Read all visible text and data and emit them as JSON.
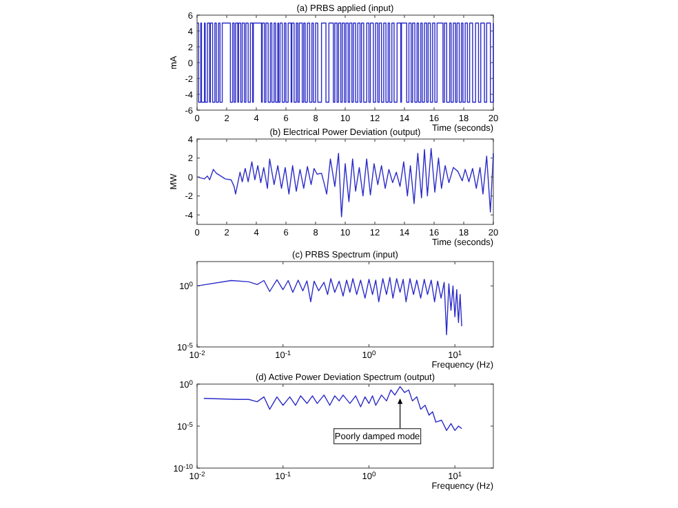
{
  "chart_data": [
    {
      "type": "step",
      "title": "(a) PRBS applied (input)",
      "xlabel": "Time (seconds)",
      "ylabel": "mA",
      "xlim": [
        0,
        20
      ],
      "ylim": [
        -6,
        6
      ],
      "xticks": [
        0,
        2,
        4,
        6,
        8,
        10,
        12,
        14,
        16,
        18,
        20
      ],
      "yticks": [
        -6,
        -4,
        -2,
        0,
        2,
        4,
        6
      ],
      "x": [
        0,
        0.1,
        0.25,
        0.3,
        0.5,
        0.55,
        0.7,
        0.85,
        0.9,
        1.05,
        1.2,
        1.3,
        1.45,
        1.55,
        1.7,
        2.25,
        2.4,
        2.5,
        2.6,
        2.75,
        2.8,
        2.95,
        3.05,
        3.2,
        3.3,
        3.45,
        3.6,
        3.75,
        3.8,
        4.35,
        4.4,
        4.55,
        4.65,
        4.8,
        4.95,
        5.05,
        5.2,
        5.3,
        5.45,
        5.5,
        5.6,
        5.75,
        5.9,
        6.0,
        6.15,
        6.35,
        6.4,
        6.55,
        6.7,
        6.8,
        6.9,
        7.1,
        7.2,
        7.3,
        7.45,
        7.6,
        7.75,
        7.85,
        8.0,
        8.15,
        8.4,
        8.7,
        8.9,
        9.2,
        9.3,
        9.45,
        9.55,
        9.7,
        9.8,
        9.95,
        10.05,
        10.2,
        10.3,
        10.45,
        10.55,
        10.7,
        10.85,
        11.0,
        11.1,
        11.25,
        11.45,
        11.6,
        11.7,
        11.9,
        12.05,
        12.2,
        12.3,
        12.45,
        12.6,
        12.75,
        12.9,
        13.0,
        13.15,
        13.3,
        13.5,
        13.75,
        13.8,
        14.15,
        14.3,
        14.45,
        14.55,
        14.7,
        14.85,
        14.95,
        15.1,
        15.2,
        15.35,
        15.5,
        15.6,
        15.75,
        15.9,
        16.05,
        16.2,
        16.6,
        16.7,
        16.85,
        17.05,
        17.15,
        17.3,
        17.45,
        17.55,
        17.7,
        17.85,
        17.95,
        18.1,
        18.25,
        18.4,
        18.6,
        18.8,
        19.0,
        19.15,
        19.4,
        19.55,
        19.8,
        20
      ],
      "series": [
        {
          "color": "#2a2ac8",
          "values": [
            5,
            -5,
            5,
            -5,
            5,
            -5,
            5,
            -5,
            5,
            -5,
            5,
            -5,
            5,
            -5,
            5,
            -5,
            5,
            -5,
            5,
            -5,
            5,
            -5,
            5,
            -5,
            5,
            -5,
            5,
            -5,
            5,
            -5,
            5,
            -5,
            5,
            -5,
            5,
            -5,
            5,
            -5,
            5,
            -5,
            5,
            -5,
            5,
            -5,
            5,
            -5,
            5,
            -5,
            5,
            -5,
            5,
            -5,
            5,
            -5,
            5,
            -5,
            5,
            -5,
            5,
            -5,
            5,
            -5,
            5,
            -5,
            5,
            -5,
            5,
            -5,
            5,
            -5,
            5,
            -5,
            5,
            -5,
            5,
            -5,
            5,
            -5,
            5,
            -5,
            5,
            -5,
            5,
            -5,
            5,
            -5,
            5,
            -5,
            5,
            -5,
            5,
            -5,
            5,
            -5,
            5,
            -5,
            5,
            -5,
            5,
            -5,
            5,
            -5,
            5,
            -5,
            5,
            -5,
            5,
            -5,
            5,
            -5,
            5,
            -5,
            5,
            -5,
            5,
            -5,
            5,
            -5,
            5,
            -5,
            5,
            -5,
            5,
            -5,
            5,
            -5,
            5,
            -5,
            5,
            -5,
            5,
            -5,
            5,
            -5,
            5
          ]
        }
      ]
    },
    {
      "type": "line",
      "title": "(b) Electrical Power Deviation (output)",
      "xlabel": "Time (seconds)",
      "ylabel": "MW",
      "xlim": [
        0,
        20
      ],
      "ylim": [
        -5,
        4
      ],
      "xticks": [
        0,
        2,
        4,
        6,
        8,
        10,
        12,
        14,
        16,
        18,
        20
      ],
      "yticks": [
        -4,
        -2,
        0,
        2,
        4
      ],
      "x": [
        0,
        0.5,
        0.7,
        0.85,
        1.1,
        1.3,
        1.5,
        1.9,
        2.3,
        2.5,
        2.6,
        2.9,
        3.05,
        3.25,
        3.45,
        3.7,
        3.9,
        4.1,
        4.3,
        4.5,
        4.75,
        4.9,
        5.2,
        5.45,
        5.7,
        5.95,
        6.2,
        6.45,
        6.7,
        6.95,
        7.2,
        7.45,
        7.7,
        7.9,
        8.1,
        8.4,
        8.6,
        8.75,
        9.0,
        9.3,
        9.55,
        9.75,
        10.0,
        10.25,
        10.5,
        10.7,
        10.95,
        11.2,
        11.45,
        11.7,
        11.95,
        12.2,
        12.45,
        12.7,
        12.95,
        13.2,
        13.45,
        13.7,
        13.95,
        14.2,
        14.4,
        14.65,
        14.9,
        15.15,
        15.35,
        15.55,
        15.8,
        16.05,
        16.3,
        16.5,
        16.75,
        17.0,
        17.3,
        17.6,
        17.9,
        18.1,
        18.35,
        18.6,
        18.85,
        19.1,
        19.3,
        19.55,
        19.8,
        20
      ],
      "series": [
        {
          "color": "#2a2ac8",
          "values": [
            0,
            -0.2,
            0.1,
            -0.3,
            0.8,
            0.4,
            0.2,
            -0.2,
            -0.3,
            -1.0,
            -1.8,
            0.5,
            -0.5,
            0.9,
            -0.5,
            1.6,
            -0.3,
            1.2,
            -0.6,
            1.0,
            -1.2,
            1.9,
            -0.8,
            1.2,
            -1.2,
            1.0,
            -1.8,
            1.2,
            -1.5,
            0.8,
            -1.2,
            1.1,
            -0.8,
            0.9,
            0.3,
            0.4,
            -0.8,
            -1.8,
            1.9,
            -1.0,
            2.5,
            -4.2,
            1.4,
            -2.6,
            1.9,
            -1.5,
            1.0,
            -2.0,
            1.9,
            -1.9,
            1.4,
            -0.8,
            1.2,
            -1.2,
            0.8,
            -0.6,
            0.5,
            -1.0,
            1.6,
            -2.0,
            1.2,
            -2.8,
            2.5,
            -2.2,
            2.9,
            -2.0,
            3.0,
            -1.6,
            2.0,
            -1.2,
            1.2,
            -0.6,
            1.0,
            0.6,
            -0.4,
            0.8,
            -0.5,
            0.9,
            -1.2,
            1.0,
            -1.8,
            2.2,
            -3.7,
            2.5
          ]
        }
      ]
    },
    {
      "type": "line",
      "title": "(c) PRBS Spectrum (input)",
      "xlabel": "Frequency (Hz)",
      "log": "xy",
      "xlim": [
        0.01,
        28
      ],
      "ylim": [
        1e-05,
        100
      ],
      "xticks": [
        {
          "value": 0.01,
          "label": "10$^{-2}$"
        },
        {
          "value": 0.1,
          "label": "10$^{-1}$"
        },
        {
          "value": 1,
          "label": "10$^{0}$"
        },
        {
          "value": 10,
          "label": "10$^{1}$"
        }
      ],
      "yticks": [
        {
          "value": 1e-05,
          "label": "10$^{-5}$"
        },
        {
          "value": 1,
          "label": "10$^{0}$"
        }
      ],
      "x": [
        0.01,
        0.025,
        0.04,
        0.05,
        0.06,
        0.07,
        0.085,
        0.1,
        0.115,
        0.13,
        0.15,
        0.17,
        0.19,
        0.21,
        0.23,
        0.26,
        0.3,
        0.33,
        0.36,
        0.4,
        0.45,
        0.5,
        0.55,
        0.6,
        0.65,
        0.72,
        0.8,
        0.9,
        1.0,
        1.1,
        1.2,
        1.3,
        1.45,
        1.6,
        1.75,
        1.9,
        2.1,
        2.3,
        2.5,
        2.7,
        3.0,
        3.3,
        3.6,
        4.0,
        4.4,
        4.8,
        5.3,
        5.8,
        6.3,
        6.9,
        7.5,
        8.0,
        8.5,
        9.0,
        9.5,
        10,
        10.5,
        11,
        11.5,
        12
      ],
      "series": [
        {
          "color": "#2a2ac8",
          "values": [
            1,
            2.8,
            2.2,
            1.3,
            2.8,
            0.35,
            3.2,
            0.5,
            2.8,
            0.3,
            3,
            0.4,
            2.6,
            0.05,
            2.5,
            0.4,
            2,
            0.2,
            4,
            0.3,
            2.5,
            0.15,
            3,
            0.3,
            4,
            0.2,
            3,
            0.1,
            3.5,
            0.2,
            3,
            0.05,
            4,
            0.2,
            5,
            0.1,
            4,
            0.3,
            3.5,
            0.05,
            4,
            0.2,
            3,
            0.1,
            3.5,
            0.2,
            3,
            0.05,
            2.5,
            0.1,
            2,
            0.0001,
            1.5,
            0.01,
            1,
            0.003,
            0.5,
            0.001,
            0.2,
            0.0005
          ]
        }
      ]
    },
    {
      "type": "line",
      "title": "(d) Active Power Deviation Spectrum (output)",
      "xlabel": "Frequency (Hz)",
      "log": "xy",
      "xlim": [
        0.01,
        28
      ],
      "ylim": [
        1e-10,
        1
      ],
      "xticks": [
        {
          "value": 0.01,
          "label": "10$^{-2}$"
        },
        {
          "value": 0.1,
          "label": "10$^{-1}$"
        },
        {
          "value": 1,
          "label": "10$^{0}$"
        },
        {
          "value": 10,
          "label": "10$^{1}$"
        }
      ],
      "yticks": [
        {
          "value": 1e-10,
          "label": "10$^{-10}$"
        },
        {
          "value": 1e-05,
          "label": "10$^{-5}$"
        },
        {
          "value": 1,
          "label": "10$^{0}$"
        }
      ],
      "x": [
        0.012,
        0.03,
        0.04,
        0.05,
        0.06,
        0.07,
        0.085,
        0.1,
        0.12,
        0.14,
        0.16,
        0.19,
        0.22,
        0.25,
        0.3,
        0.35,
        0.4,
        0.45,
        0.5,
        0.6,
        0.7,
        0.8,
        0.9,
        1.0,
        1.1,
        1.2,
        1.4,
        1.6,
        1.8,
        2.0,
        2.3,
        2.6,
        2.9,
        3.2,
        3.6,
        4.0,
        4.5,
        5.0,
        5.5,
        6.0,
        7.0,
        8.0,
        9.0,
        10,
        11,
        12
      ],
      "series": [
        {
          "color": "#2a2ac8",
          "values": [
            0.02,
            0.015,
            0.015,
            0.008,
            0.03,
            0.001,
            0.03,
            0.003,
            0.03,
            0.003,
            0.04,
            0.005,
            0.04,
            0.005,
            0.05,
            0.003,
            0.04,
            0.01,
            0.05,
            0.005,
            0.04,
            0.002,
            0.03,
            0.005,
            0.04,
            0.003,
            0.05,
            0.01,
            0.2,
            0.05,
            0.5,
            0.1,
            0.2,
            0.01,
            0.03,
            0.001,
            0.003,
            0.0002,
            0.0005,
            3e-05,
            5e-05,
            3e-06,
            2e-05,
            3e-06,
            1e-05,
            5e-06
          ]
        }
      ],
      "annotations": [
        {
          "text": "Poorly damped mode",
          "x": 2.3,
          "y": 0.02
        }
      ]
    }
  ]
}
